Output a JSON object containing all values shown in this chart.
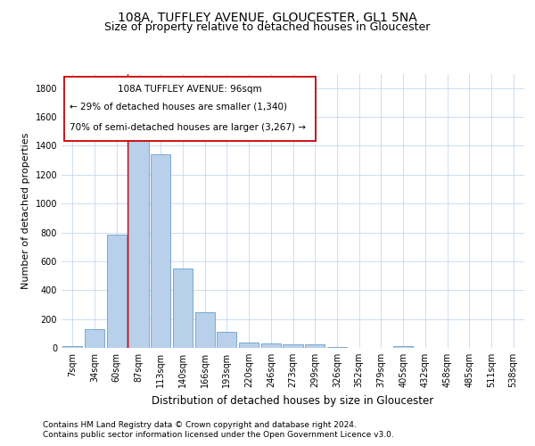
{
  "title1": "108A, TUFFLEY AVENUE, GLOUCESTER, GL1 5NA",
  "title2": "Size of property relative to detached houses in Gloucester",
  "xlabel": "Distribution of detached houses by size in Gloucester",
  "ylabel": "Number of detached properties",
  "categories": [
    "7sqm",
    "34sqm",
    "60sqm",
    "87sqm",
    "113sqm",
    "140sqm",
    "166sqm",
    "193sqm",
    "220sqm",
    "246sqm",
    "273sqm",
    "299sqm",
    "326sqm",
    "352sqm",
    "379sqm",
    "405sqm",
    "432sqm",
    "458sqm",
    "485sqm",
    "511sqm",
    "538sqm"
  ],
  "values": [
    10,
    130,
    785,
    1440,
    1340,
    550,
    250,
    110,
    35,
    30,
    25,
    25,
    5,
    0,
    0,
    10,
    0,
    0,
    0,
    0,
    0
  ],
  "bar_color": "#b8d0ea",
  "bar_edge_color": "#6aa0cc",
  "red_line_x": 2.5,
  "annotation_line1": "108A TUFFLEY AVENUE: 96sqm",
  "annotation_line2": "← 29% of detached houses are smaller (1,340)",
  "annotation_line3": "70% of semi-detached houses are larger (3,267) →",
  "annotation_box_color": "#cc0000",
  "ylim": [
    0,
    1900
  ],
  "yticks": [
    0,
    200,
    400,
    600,
    800,
    1000,
    1200,
    1400,
    1600,
    1800
  ],
  "footer_line1": "Contains HM Land Registry data © Crown copyright and database right 2024.",
  "footer_line2": "Contains public sector information licensed under the Open Government Licence v3.0.",
  "bg_color": "#ffffff",
  "grid_color": "#c8d8ec",
  "title1_fontsize": 10,
  "title2_fontsize": 9,
  "xlabel_fontsize": 8.5,
  "ylabel_fontsize": 8,
  "tick_fontsize": 7,
  "annotation_fontsize": 7.5,
  "footer_fontsize": 6.5
}
